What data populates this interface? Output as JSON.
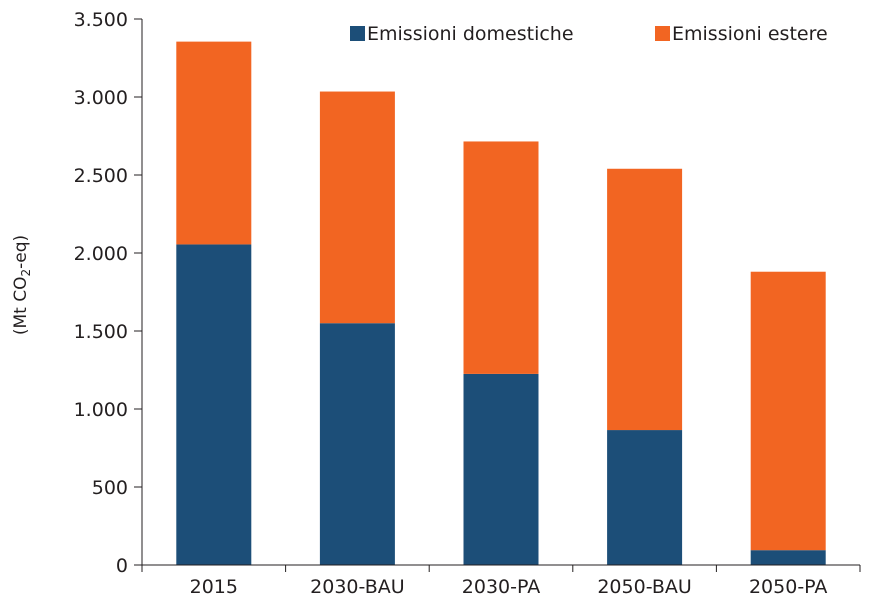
{
  "chart_data": {
    "type": "bar",
    "stacked": true,
    "categories": [
      "2015",
      "2030-BAU",
      "2030-PA",
      "2050-BAU",
      "2050-PA"
    ],
    "series": [
      {
        "name": "Emissioni domestiche",
        "color": "#1c4e78",
        "values": [
          2055,
          1550,
          1225,
          865,
          95
        ]
      },
      {
        "name": "Emissioni estere",
        "color": "#f26522",
        "values": [
          1300,
          1485,
          1490,
          1675,
          1785
        ]
      }
    ],
    "title": "",
    "xlabel": "",
    "ylabel": {
      "prefix": "(Mt CO",
      "subscript": "2",
      "suffix": "-eq)"
    },
    "ylim": [
      0,
      3500
    ],
    "yticks": [
      0,
      500,
      1000,
      1500,
      2000,
      2500,
      3000,
      3500
    ],
    "ytick_labels": [
      "0",
      "500",
      "1.000",
      "1.500",
      "2.000",
      "2.500",
      "3.000",
      "3.500"
    ],
    "legend_position": "top-right",
    "grid": false,
    "axis_color": "#231f20"
  }
}
